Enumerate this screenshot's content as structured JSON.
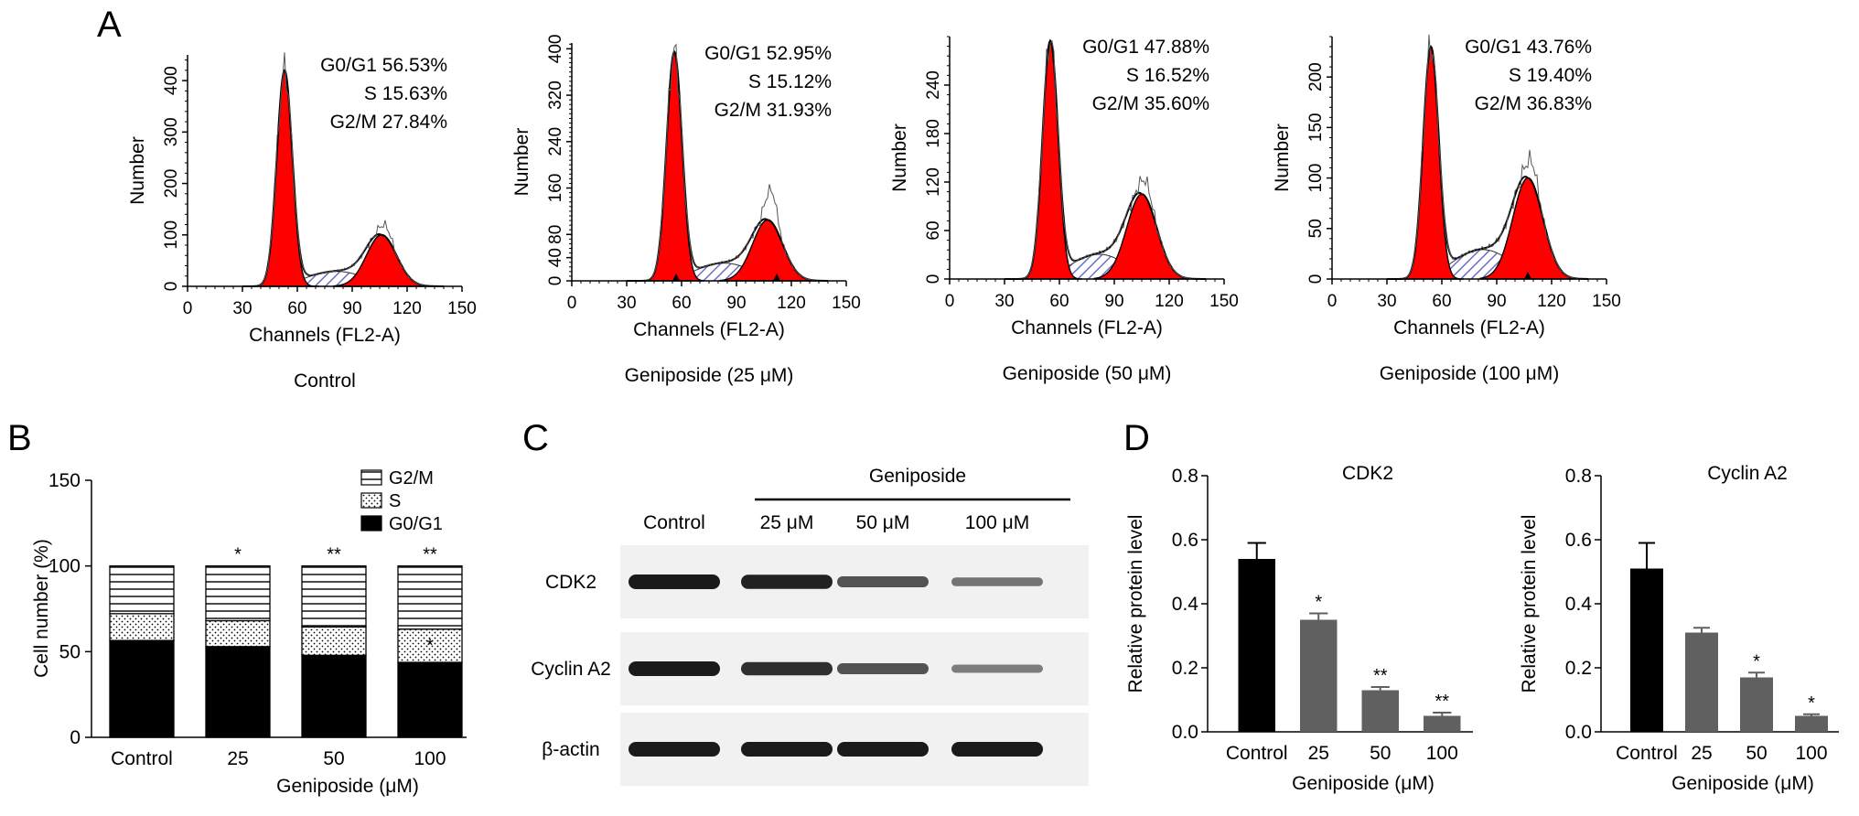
{
  "panel_labels": {
    "a": "A",
    "b": "B",
    "c": "C",
    "d": "D"
  },
  "colors": {
    "g0g1_fill": "#ff0000",
    "s_fill": "#c9cbee",
    "bar_control": "#000000",
    "bar_treated": "#606060",
    "band": "#1a1a1a"
  },
  "chart_data": [
    {
      "type": "area",
      "panel": "A",
      "xlabel": "Channels (FL2-A)",
      "ylabel": "Number",
      "caption": "Control",
      "xlim": [
        0,
        150
      ],
      "xticks": [
        0,
        30,
        60,
        90,
        120,
        150
      ],
      "ylim": [
        0,
        450
      ],
      "yticks": [
        0,
        100,
        200,
        300,
        400
      ],
      "peaks": {
        "g1_channel": 53,
        "g1_height": 420,
        "g2_channel": 106,
        "g2_height": 100,
        "g2_raw_height": 122
      },
      "annotations": [
        "G0/G1 56.53%",
        "S 15.63%",
        "G2/M 27.84%"
      ],
      "phases": [
        {
          "name": "G0/G1",
          "value": 56.53
        },
        {
          "name": "S",
          "value": 15.63
        },
        {
          "name": "G2/M",
          "value": 27.84
        }
      ],
      "markers": []
    },
    {
      "type": "area",
      "panel": "A",
      "xlabel": "Channels (FL2-A)",
      "ylabel": "Number",
      "caption": "Geniposide (25 μM)",
      "xlim": [
        0,
        150
      ],
      "xticks": [
        0,
        30,
        60,
        90,
        120,
        150
      ],
      "ylim": [
        0,
        410
      ],
      "yticks": [
        0,
        40,
        80,
        160,
        240,
        320,
        400
      ],
      "yticklabels_shown": [
        "0",
        "40",
        "80",
        "160",
        "240",
        "320",
        "400"
      ],
      "peaks": {
        "g1_channel": 56,
        "g1_height": 395,
        "g2_channel": 107,
        "g2_height": 105,
        "g2_raw_height": 160
      },
      "annotations": [
        "G0/G1 52.95%",
        "S 15.12%",
        "G2/M 31.93%"
      ],
      "phases": [
        {
          "name": "G0/G1",
          "value": 52.95
        },
        {
          "name": "S",
          "value": 15.12
        },
        {
          "name": "G2/M",
          "value": 31.93
        }
      ],
      "markers": [
        57,
        112
      ]
    },
    {
      "type": "area",
      "panel": "A",
      "xlabel": "Channels (FL2-A)",
      "ylabel": "Number",
      "caption": "Geniposide (50 μM)",
      "xlim": [
        0,
        150
      ],
      "xticks": [
        0,
        30,
        60,
        90,
        120,
        150
      ],
      "ylim": [
        0,
        300
      ],
      "yticks": [
        0,
        60,
        120,
        180,
        240
      ],
      "peaks": {
        "g1_channel": 55,
        "g1_height": 295,
        "g2_channel": 105,
        "g2_height": 105,
        "g2_raw_height": 125
      },
      "annotations": [
        "G0/G1 47.88%",
        "S 16.52%",
        "G2/M 35.60%"
      ],
      "phases": [
        {
          "name": "G0/G1",
          "value": 47.88
        },
        {
          "name": "S",
          "value": 16.52
        },
        {
          "name": "G2/M",
          "value": 35.6
        }
      ],
      "markers": []
    },
    {
      "type": "area",
      "panel": "A",
      "xlabel": "Channels (FL2-A)",
      "ylabel": "Number",
      "caption": "Geniposide (100 μM)",
      "xlim": [
        0,
        150
      ],
      "xticks": [
        0,
        30,
        60,
        90,
        120,
        150
      ],
      "ylim": [
        0,
        240
      ],
      "yticks": [
        0,
        50,
        100,
        150,
        200
      ],
      "peaks": {
        "g1_channel": 54,
        "g1_height": 230,
        "g2_channel": 107,
        "g2_height": 100,
        "g2_raw_height": 120
      },
      "annotations": [
        "G0/G1 43.76%",
        "S 19.40%",
        "G2/M 36.83%"
      ],
      "phases": [
        {
          "name": "G0/G1",
          "value": 43.76
        },
        {
          "name": "S",
          "value": 19.4
        },
        {
          "name": "G2/M",
          "value": 36.83
        }
      ],
      "markers": [
        107
      ]
    },
    {
      "type": "bar",
      "panel": "B",
      "stacked": true,
      "categories": [
        "Control",
        "25",
        "50",
        "100"
      ],
      "xlabel": "Geniposide (μM)",
      "ylabel": "Cell number (%)",
      "ylim": [
        0,
        150
      ],
      "yticks": [
        0,
        50,
        100,
        150
      ],
      "legend": [
        "G2/M",
        "S",
        "G0/G1"
      ],
      "legend_position": "top-right",
      "series": [
        {
          "name": "G0/G1",
          "values": [
            56.53,
            52.95,
            47.88,
            43.76
          ],
          "stars": [
            "",
            "*",
            "***",
            "***"
          ]
        },
        {
          "name": "S",
          "values": [
            15.63,
            15.12,
            16.52,
            19.4
          ],
          "stars": [
            "",
            "",
            "",
            "*"
          ]
        },
        {
          "name": "G2/M",
          "values": [
            27.84,
            31.93,
            35.6,
            36.83
          ],
          "stars": [
            "",
            "*",
            "**",
            "**"
          ]
        }
      ]
    },
    {
      "type": "table",
      "panel": "C",
      "group_label": "Geniposide",
      "columns": [
        "Control",
        "25 μM",
        "50 μM",
        "100 μM"
      ],
      "rows": [
        {
          "label": "CDK2",
          "intensity": [
            1.0,
            0.95,
            0.6,
            0.35
          ]
        },
        {
          "label": "Cyclin A2",
          "intensity": [
            1.0,
            0.85,
            0.6,
            0.3
          ]
        },
        {
          "label": "β-actin",
          "intensity": [
            1.0,
            1.0,
            1.0,
            1.0
          ]
        }
      ]
    },
    {
      "type": "bar",
      "panel": "D",
      "title": "CDK2",
      "categories": [
        "Control",
        "25",
        "50",
        "100"
      ],
      "values": [
        0.54,
        0.35,
        0.13,
        0.05
      ],
      "errors": [
        0.05,
        0.02,
        0.01,
        0.01
      ],
      "stars": [
        "",
        "*",
        "**",
        "**"
      ],
      "xlabel": "Geniposide (μM)",
      "ylabel": "Relative protein level",
      "ylim": [
        0,
        0.8
      ],
      "yticks": [
        "0.0",
        "0.2",
        "0.4",
        "0.6",
        "0.8"
      ]
    },
    {
      "type": "bar",
      "panel": "D",
      "title": "Cyclin A2",
      "categories": [
        "Control",
        "25",
        "50",
        "100"
      ],
      "values": [
        0.51,
        0.31,
        0.17,
        0.05
      ],
      "errors": [
        0.08,
        0.015,
        0.015,
        0.005
      ],
      "stars": [
        "",
        "",
        "*",
        "*"
      ],
      "xlabel": "Geniposide (μM)",
      "ylabel": "Relative protein level",
      "ylim": [
        0,
        0.8
      ],
      "yticks": [
        "0.0",
        "0.2",
        "0.4",
        "0.6",
        "0.8"
      ]
    }
  ]
}
